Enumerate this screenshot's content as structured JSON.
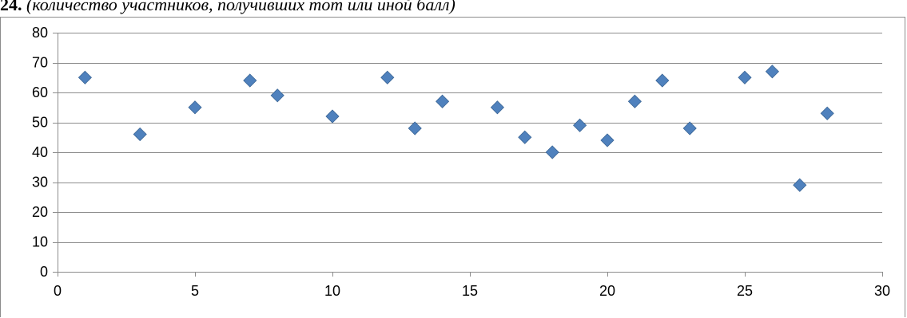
{
  "caption": {
    "prefix": "24.",
    "text": " (количество участников, получивших тот или иной балл)"
  },
  "colors": {
    "marker": "#4f81bd",
    "marker_stroke": "#3a6595",
    "grid": "#8c8c8c",
    "axis": "#8c8c8c"
  },
  "chart_data": {
    "type": "scatter",
    "title": "",
    "xlabel": "",
    "ylabel": "",
    "xlim": [
      0,
      30
    ],
    "ylim": [
      0,
      80
    ],
    "x_ticks": [
      0,
      5,
      10,
      15,
      20,
      25,
      30
    ],
    "y_ticks": [
      0,
      10,
      20,
      30,
      40,
      50,
      60,
      70,
      80
    ],
    "grid": "horizontal",
    "legend": "none",
    "marker": "diamond",
    "series": [
      {
        "x": [
          1,
          3,
          5,
          7,
          8,
          10,
          12,
          13,
          14,
          16,
          17,
          18,
          19,
          20,
          21,
          22,
          23,
          25,
          26,
          27,
          28
        ],
        "y": [
          65,
          46,
          55,
          64,
          59,
          52,
          65,
          48,
          57,
          55,
          45,
          40,
          49,
          44,
          57,
          64,
          48,
          65,
          67,
          29,
          53
        ]
      }
    ]
  }
}
